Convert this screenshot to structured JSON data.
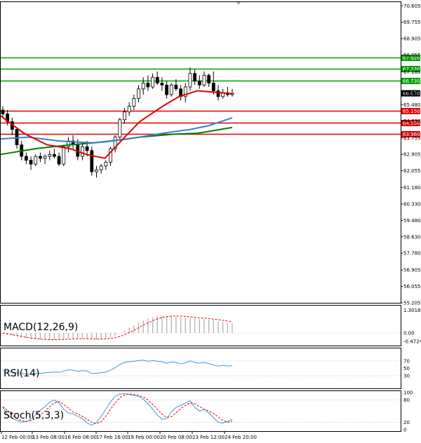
{
  "chart_data": {
    "type": "candlestick",
    "price_axis": {
      "range": [
        55.205,
        70.8
      ],
      "ticks": [
        "70.605",
        "69.755",
        "68.905",
        "68.055",
        "67.180",
        "66.130",
        "65.480",
        "64.630",
        "63.755",
        "62.905",
        "62.055",
        "61.180",
        "60.330",
        "59.480",
        "58.630",
        "57.780",
        "56.905",
        "56.055",
        "55.205"
      ]
    },
    "levels": {
      "resistance": [
        {
          "value": 67.92,
          "label": "67.920",
          "color": "#00a000"
        },
        {
          "value": 67.33,
          "label": "67.330",
          "color": "#00a000"
        },
        {
          "value": 66.73,
          "label": "66.730",
          "color": "#00a000"
        }
      ],
      "support": [
        {
          "value": 65.15,
          "label": "65.150",
          "color": "#e00000"
        },
        {
          "value": 64.55,
          "label": "64.550",
          "color": "#e00000"
        },
        {
          "value": 63.96,
          "label": "63.960",
          "color": "#e00000"
        }
      ],
      "current": {
        "value": 66.07,
        "label": "66.070"
      }
    },
    "x_labels": [
      "12 Feb 00:00",
      "13 Feb 08:00",
      "16 Feb 08:00",
      "17 Feb 16:00",
      "19 Feb 00:00",
      "20 Feb 08:00",
      "23 Feb 12:00",
      "24 Feb 20:00"
    ],
    "candles": [
      [
        65.2,
        65.4,
        64.8,
        65.0
      ],
      [
        65.0,
        65.2,
        64.4,
        64.6
      ],
      [
        64.6,
        64.8,
        63.9,
        64.2
      ],
      [
        64.2,
        64.3,
        63.2,
        63.4
      ],
      [
        63.4,
        63.6,
        62.6,
        62.8
      ],
      [
        62.8,
        63.0,
        62.4,
        62.6
      ],
      [
        62.6,
        62.8,
        62.1,
        62.4
      ],
      [
        62.4,
        62.9,
        62.3,
        62.8
      ],
      [
        62.8,
        63.0,
        62.5,
        62.7
      ],
      [
        62.7,
        62.9,
        62.4,
        62.8
      ],
      [
        62.8,
        63.1,
        62.6,
        62.9
      ],
      [
        62.9,
        63.2,
        62.7,
        62.8
      ],
      [
        62.8,
        63.0,
        62.3,
        62.4
      ],
      [
        62.4,
        63.4,
        62.3,
        63.3
      ],
      [
        63.3,
        63.8,
        63.0,
        63.6
      ],
      [
        63.6,
        63.9,
        63.2,
        63.4
      ],
      [
        63.4,
        63.7,
        62.6,
        62.8
      ],
      [
        62.8,
        63.5,
        62.6,
        63.3
      ],
      [
        63.3,
        63.6,
        62.8,
        63.1
      ],
      [
        63.1,
        63.3,
        61.8,
        62.0
      ],
      [
        62.0,
        62.3,
        61.7,
        62.1
      ],
      [
        62.1,
        62.4,
        61.9,
        62.3
      ],
      [
        62.3,
        62.6,
        62.1,
        62.5
      ],
      [
        62.5,
        63.3,
        62.3,
        63.2
      ],
      [
        63.2,
        63.9,
        63.0,
        63.8
      ],
      [
        63.8,
        64.8,
        63.7,
        64.7
      ],
      [
        64.7,
        65.3,
        64.5,
        65.1
      ],
      [
        65.1,
        65.6,
        64.9,
        65.4
      ],
      [
        65.4,
        66.0,
        65.2,
        65.8
      ],
      [
        65.8,
        66.5,
        65.6,
        66.3
      ],
      [
        66.3,
        66.9,
        66.0,
        66.6
      ],
      [
        66.6,
        67.0,
        66.2,
        66.4
      ],
      [
        66.4,
        67.1,
        66.3,
        66.9
      ],
      [
        66.9,
        67.2,
        66.5,
        66.6
      ],
      [
        66.6,
        66.9,
        66.2,
        66.5
      ],
      [
        66.5,
        66.7,
        65.8,
        66.0
      ],
      [
        66.0,
        66.6,
        65.9,
        66.5
      ],
      [
        66.5,
        66.8,
        66.2,
        66.3
      ],
      [
        66.3,
        66.5,
        65.7,
        65.9
      ],
      [
        65.9,
        66.6,
        65.6,
        66.4
      ],
      [
        66.4,
        67.4,
        66.2,
        67.1
      ],
      [
        67.1,
        67.3,
        66.5,
        66.7
      ],
      [
        66.7,
        67.0,
        66.3,
        66.5
      ],
      [
        66.5,
        67.2,
        66.4,
        67.0
      ],
      [
        67.0,
        67.1,
        66.4,
        66.6
      ],
      [
        66.6,
        67.2,
        66.0,
        66.2
      ],
      [
        66.2,
        66.5,
        65.7,
        65.9
      ],
      [
        65.9,
        66.3,
        65.8,
        66.1
      ],
      [
        66.1,
        66.4,
        65.9,
        66.0
      ],
      [
        66.0,
        66.3,
        65.9,
        66.07
      ]
    ],
    "ma_fast": [
      [
        0,
        64.9
      ],
      [
        0.1,
        64.0
      ],
      [
        0.2,
        63.4
      ],
      [
        0.3,
        63.2
      ],
      [
        0.37,
        62.9
      ],
      [
        0.45,
        62.7
      ],
      [
        0.52,
        63.6
      ],
      [
        0.6,
        64.6
      ],
      [
        0.7,
        65.4
      ],
      [
        0.77,
        65.9
      ],
      [
        0.85,
        66.2
      ],
      [
        0.95,
        66.1
      ],
      [
        1,
        66.05
      ]
    ],
    "ma_mid": [
      [
        0,
        63.7
      ],
      [
        0.12,
        63.8
      ],
      [
        0.25,
        63.6
      ],
      [
        0.4,
        63.5
      ],
      [
        0.55,
        63.7
      ],
      [
        0.7,
        64.0
      ],
      [
        0.82,
        64.2
      ],
      [
        0.9,
        64.4
      ],
      [
        1,
        64.8
      ]
    ],
    "ma_slow": [
      [
        0,
        62.9
      ],
      [
        0.15,
        63.2
      ],
      [
        0.3,
        63.4
      ],
      [
        0.45,
        63.55
      ],
      [
        0.6,
        63.8
      ],
      [
        0.75,
        63.95
      ],
      [
        0.85,
        64.0
      ],
      [
        0.95,
        64.2
      ],
      [
        1,
        64.3
      ]
    ],
    "macd": {
      "label": "MACD(12,26,9)",
      "ticks": [
        "1.3018",
        "0.00",
        "-0.4724"
      ],
      "range": [
        -0.6,
        1.4
      ],
      "hist": [
        -0.05,
        -0.1,
        -0.15,
        -0.2,
        -0.26,
        -0.3,
        -0.34,
        -0.36,
        -0.37,
        -0.38,
        -0.38,
        -0.37,
        -0.36,
        -0.35,
        -0.32,
        -0.3,
        -0.3,
        -0.31,
        -0.33,
        -0.36,
        -0.36,
        -0.34,
        -0.3,
        -0.24,
        -0.14,
        0.0,
        0.15,
        0.3,
        0.45,
        0.6,
        0.72,
        0.82,
        0.9,
        0.95,
        0.97,
        0.96,
        0.94,
        0.92,
        0.88,
        0.85,
        0.85,
        0.82,
        0.8,
        0.78,
        0.76,
        0.72,
        0.66,
        0.62,
        0.58,
        0.55
      ],
      "signal": [
        0.0,
        -0.05,
        -0.1,
        -0.15,
        -0.2,
        -0.25,
        -0.29,
        -0.32,
        -0.35,
        -0.37,
        -0.38,
        -0.38,
        -0.38,
        -0.37,
        -0.36,
        -0.34,
        -0.33,
        -0.33,
        -0.33,
        -0.34,
        -0.35,
        -0.35,
        -0.34,
        -0.31,
        -0.27,
        -0.2,
        -0.1,
        0.02,
        0.15,
        0.3,
        0.45,
        0.58,
        0.7,
        0.8,
        0.88,
        0.93,
        0.96,
        0.97,
        0.96,
        0.94,
        0.92,
        0.9,
        0.87,
        0.84,
        0.82,
        0.79,
        0.76,
        0.72,
        0.68,
        0.64
      ]
    },
    "rsi": {
      "label": "RSI(14)",
      "ticks": [
        "70",
        "50",
        "30"
      ],
      "range": [
        0,
        100
      ],
      "values": [
        44,
        42,
        40,
        38,
        36,
        35,
        34,
        36,
        37,
        38,
        39,
        40,
        39,
        43,
        46,
        45,
        42,
        44,
        43,
        36,
        37,
        38,
        40,
        45,
        52,
        60,
        66,
        68,
        69,
        71,
        72,
        69,
        71,
        69,
        68,
        64,
        67,
        66,
        62,
        65,
        70,
        66,
        64,
        66,
        63,
        59,
        56,
        58,
        56,
        57
      ]
    },
    "stoch": {
      "label": "Stoch(5,3,3)",
      "ticks": [
        "100",
        "80",
        "20",
        "0"
      ],
      "range": [
        0,
        100
      ],
      "k": [
        60,
        40,
        30,
        25,
        20,
        22,
        28,
        40,
        52,
        62,
        74,
        80,
        72,
        55,
        45,
        42,
        36,
        30,
        18,
        12,
        20,
        35,
        55,
        75,
        90,
        96,
        97,
        95,
        92,
        90,
        82,
        70,
        55,
        40,
        28,
        30,
        48,
        60,
        65,
        72,
        78,
        60,
        50,
        55,
        45,
        32,
        20,
        18,
        22,
        28
      ],
      "d": [
        62,
        52,
        40,
        30,
        24,
        22,
        24,
        30,
        40,
        50,
        62,
        72,
        76,
        68,
        58,
        48,
        42,
        36,
        28,
        20,
        16,
        22,
        36,
        55,
        72,
        86,
        94,
        96,
        95,
        92,
        88,
        80,
        68,
        55,
        42,
        33,
        35,
        45,
        57,
        65,
        72,
        70,
        62,
        55,
        50,
        44,
        34,
        25,
        20,
        23
      ]
    }
  }
}
